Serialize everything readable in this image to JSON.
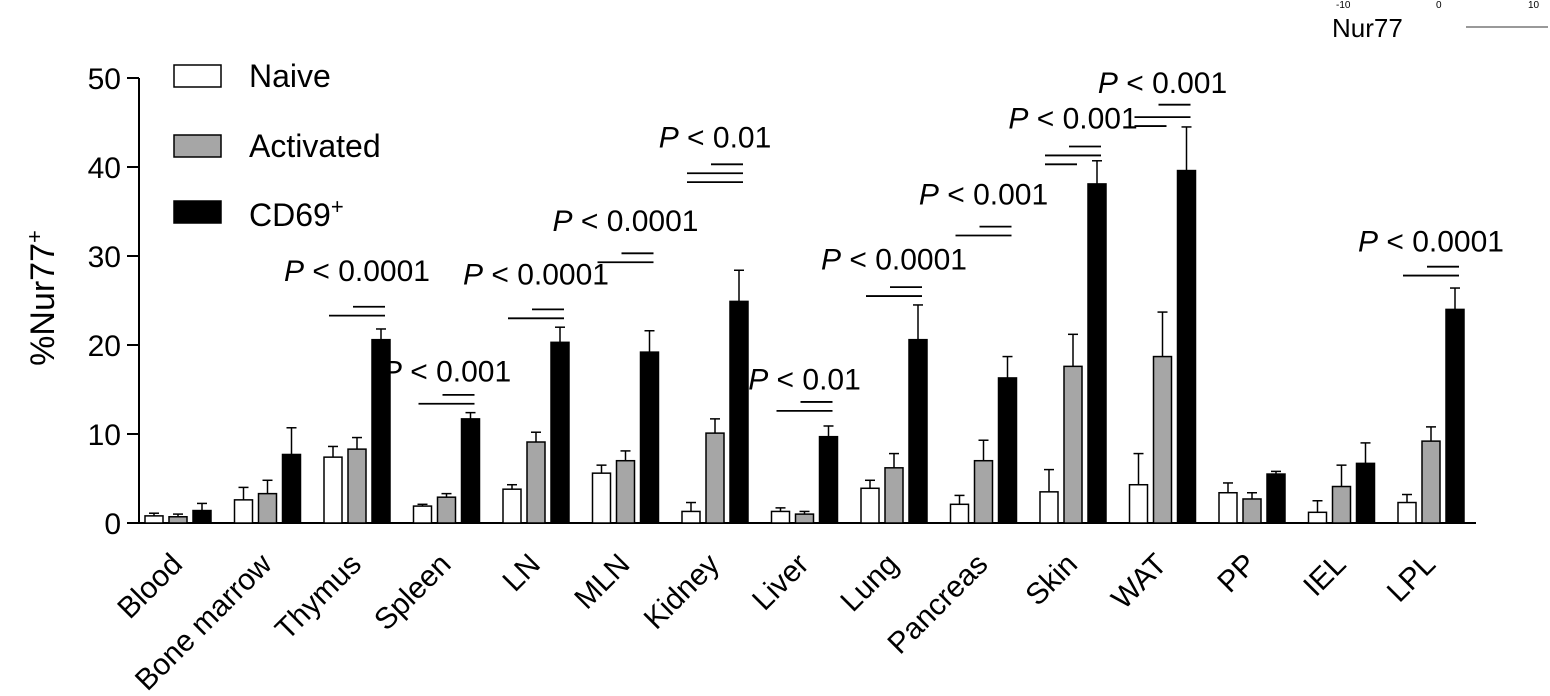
{
  "corner_fragment": {
    "label": "Nur77",
    "ticks": [
      "-10",
      "0",
      "10"
    ]
  },
  "chart_data": {
    "type": "bar",
    "ylabel": "%Nur77",
    "ylabel_superscript": "+",
    "ylim": [
      0,
      50
    ],
    "yticks": [
      0,
      10,
      20,
      30,
      40,
      50
    ],
    "grid": false,
    "legend_position": "top-left",
    "categories": [
      "Blood",
      "Bone marrow",
      "Thymus",
      "Spleen",
      "LN",
      "MLN",
      "Kidney",
      "Liver",
      "Lung",
      "Pancreas",
      "Skin",
      "WAT",
      "PP",
      "IEL",
      "LPL"
    ],
    "series": [
      {
        "name": "Naive",
        "color": "#ffffff",
        "values": [
          0.8,
          2.6,
          7.4,
          1.9,
          3.8,
          5.6,
          1.3,
          1.3,
          3.9,
          2.1,
          3.5,
          4.3,
          3.4,
          1.2,
          2.3
        ],
        "errors": [
          0.3,
          1.4,
          1.2,
          0.2,
          0.5,
          0.9,
          1.0,
          0.4,
          0.9,
          1.0,
          2.5,
          3.5,
          1.1,
          1.3,
          0.9
        ]
      },
      {
        "name": "Activated",
        "color": "#a6a6a6",
        "values": [
          0.7,
          3.3,
          8.3,
          2.9,
          9.1,
          7.0,
          10.1,
          1.0,
          6.2,
          7.0,
          17.6,
          18.7,
          2.7,
          4.1,
          9.2
        ],
        "errors": [
          0.3,
          1.5,
          1.3,
          0.4,
          1.1,
          1.1,
          1.6,
          0.3,
          1.6,
          2.3,
          3.6,
          5.0,
          0.7,
          2.4,
          1.6
        ]
      },
      {
        "name": "CD69",
        "name_superscript": "+",
        "color": "#000000",
        "values": [
          1.4,
          7.7,
          20.6,
          11.7,
          20.3,
          19.2,
          24.9,
          9.7,
          20.6,
          16.3,
          38.1,
          39.6,
          5.5,
          6.7,
          24.0
        ],
        "errors": [
          0.8,
          3.0,
          1.2,
          0.7,
          1.7,
          2.4,
          3.5,
          1.2,
          3.9,
          2.4,
          2.6,
          4.9,
          0.3,
          2.3,
          2.4
        ]
      }
    ],
    "annotations": [
      {
        "category": "Thymus",
        "text": "P < 0.0001",
        "label_y": 27.2,
        "lines": [
          {
            "from": 0,
            "to": 2,
            "y": 23.3
          },
          {
            "from": 1,
            "to": 2,
            "y": 24.3
          }
        ]
      },
      {
        "category": "Spleen",
        "text": "P < 0.001",
        "label_y": 15.9,
        "lines": [
          {
            "from": 0,
            "to": 2,
            "y": 13.4
          },
          {
            "from": 1,
            "to": 2,
            "y": 14.4
          }
        ]
      },
      {
        "category": "LN",
        "text": "P < 0.0001",
        "label_y": 26.8,
        "lines": [
          {
            "from": 0,
            "to": 2,
            "y": 23.0
          },
          {
            "from": 1,
            "to": 2,
            "y": 24.0
          }
        ]
      },
      {
        "category": "MLN",
        "text": "P < 0.0001",
        "label_y": 32.8,
        "lines": [
          {
            "from": 0,
            "to": 2,
            "y": 29.3
          },
          {
            "from": 1,
            "to": 2,
            "y": 30.3
          }
        ]
      },
      {
        "category": "Kidney",
        "text": "P < 0.01",
        "label_y": 42.2,
        "lines": [
          {
            "from": 0,
            "to": 2,
            "y": 38.3
          },
          {
            "from": 0,
            "to": 2,
            "y": 39.3
          },
          {
            "from": 1,
            "to": 2,
            "y": 40.3
          }
        ]
      },
      {
        "category": "Liver",
        "text": "P < 0.01",
        "label_y": 15.0,
        "lines": [
          {
            "from": 0,
            "to": 2,
            "y": 12.6
          },
          {
            "from": 1,
            "to": 2,
            "y": 13.6
          }
        ]
      },
      {
        "category": "Lung",
        "text": "P < 0.0001",
        "label_y": 28.5,
        "lines": [
          {
            "from": 0,
            "to": 2,
            "y": 25.5
          },
          {
            "from": 1,
            "to": 2,
            "y": 26.5
          }
        ]
      },
      {
        "category": "Pancreas",
        "text": "P < 0.001",
        "label_y": 35.8,
        "lines": [
          {
            "from": 0,
            "to": 2,
            "y": 32.3
          },
          {
            "from": 1,
            "to": 2,
            "y": 33.3
          }
        ]
      },
      {
        "category": "Skin",
        "text": "P < 0.001",
        "label_y": 44.3,
        "lines": [
          {
            "from": 0,
            "to": 1,
            "y": 40.3
          },
          {
            "from": 0,
            "to": 2,
            "y": 41.3
          },
          {
            "from": 1,
            "to": 2,
            "y": 42.3
          }
        ]
      },
      {
        "category": "WAT",
        "text": "P < 0.001",
        "label_y": 48.3,
        "lines": [
          {
            "from": 0,
            "to": 1,
            "y": 44.6
          },
          {
            "from": 0,
            "to": 2,
            "y": 45.6
          },
          {
            "from": 1,
            "to": 2,
            "y": 47.0
          }
        ]
      },
      {
        "category": "LPL",
        "text": "P < 0.0001",
        "label_y": 30.5,
        "lines": [
          {
            "from": 0,
            "to": 2,
            "y": 27.8
          },
          {
            "from": 1,
            "to": 2,
            "y": 28.8
          }
        ]
      }
    ]
  }
}
